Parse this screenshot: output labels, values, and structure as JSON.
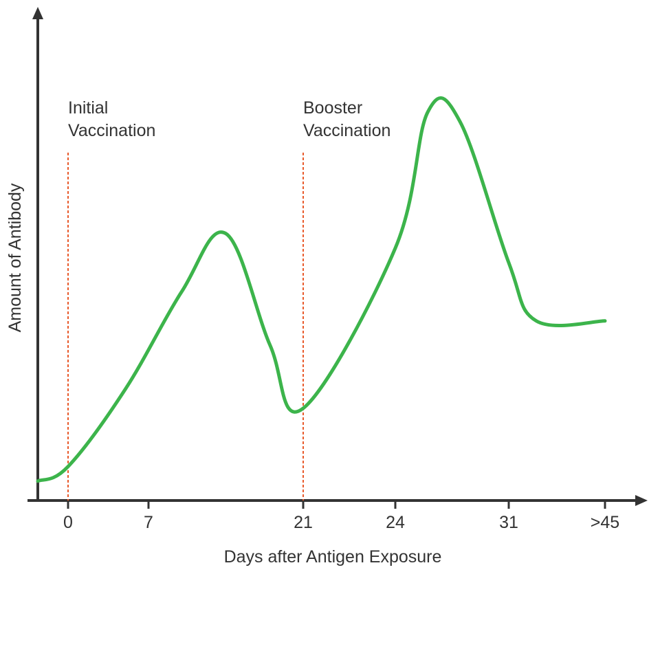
{
  "chart_data": {
    "type": "line",
    "xlabel": "Days after Antigen Exposure",
    "ylabel": "Amount of Antibody",
    "x_ticks": [
      "0",
      "7",
      "21",
      "24",
      "31",
      ">45"
    ],
    "ylim": [
      0,
      100
    ],
    "grid": false,
    "series": [
      {
        "points": [
          {
            "x": "-3",
            "y": 4
          },
          {
            "x": "0",
            "y": 7
          },
          {
            "x": "5",
            "y": 23
          },
          {
            "x": "10",
            "y": 43
          },
          {
            "x": "14",
            "y": 55
          },
          {
            "x": "18",
            "y": 32
          },
          {
            "x": "21",
            "y": 19
          },
          {
            "x": "24",
            "y": 52
          },
          {
            "x": "26",
            "y": 80
          },
          {
            "x": "28",
            "y": 78
          },
          {
            "x": "31",
            "y": 49
          },
          {
            "x": "35",
            "y": 37
          },
          {
            "x": ">45",
            "y": 37
          }
        ],
        "color": "#3cb44b"
      }
    ],
    "annotations": [
      {
        "lines": [
          "Initial",
          "Vaccination"
        ],
        "x": "0",
        "color": "#e8592a"
      },
      {
        "lines": [
          "Booster",
          "Vaccination"
        ],
        "x": "21",
        "color": "#e8592a"
      }
    ]
  },
  "colors": {
    "axis": "#333333",
    "curve": "#3cb44b",
    "marker_line": "#e8592a"
  }
}
